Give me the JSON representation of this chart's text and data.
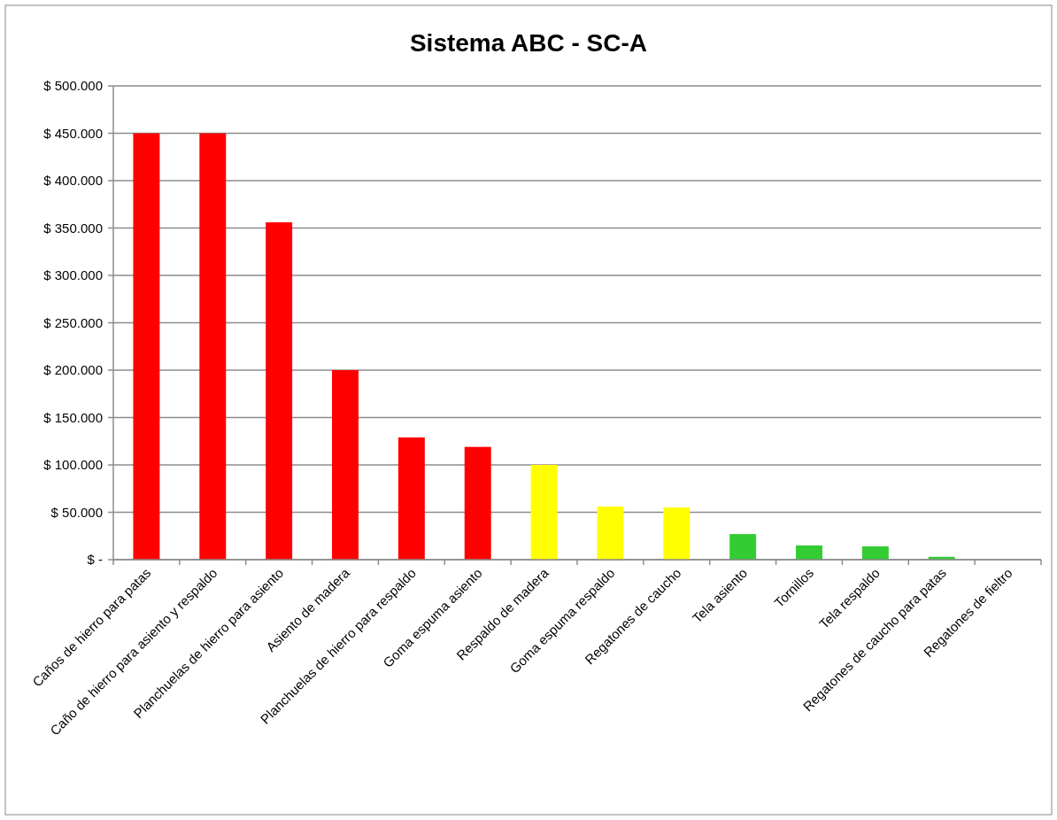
{
  "chart_data": {
    "type": "bar",
    "title": "Sistema ABC - SC-A",
    "categories": [
      "Caños de hierro para patas",
      "Caño de hierro para asiento y respaldo",
      "Planchuelas de hierro para asiento",
      "Asiento de madera",
      "Planchuelas de hierro para respaldo",
      "Goma espuma asiento",
      "Respaldo de madera",
      "Goma espuma respaldo",
      "Regatones de caucho",
      "Tela asiento",
      "Tornillos",
      "Tela respaldo",
      "Regatones de caucho para patas",
      "Regatones de fieltro"
    ],
    "values": [
      450000,
      450000,
      356000,
      200000,
      129000,
      119000,
      100000,
      56000,
      55000,
      27000,
      15000,
      14000,
      3000,
      0
    ],
    "colors": [
      "#ff0000",
      "#ff0000",
      "#ff0000",
      "#ff0000",
      "#ff0000",
      "#ff0000",
      "#ffff00",
      "#ffff00",
      "#ffff00",
      "#33cc33",
      "#33cc33",
      "#33cc33",
      "#33cc33",
      "#33cc33"
    ],
    "ylim": [
      0,
      500000
    ],
    "yticks": [
      {
        "value": 0,
        "label": "$ -"
      },
      {
        "value": 50000,
        "label": "$ 50.000"
      },
      {
        "value": 100000,
        "label": "$ 100.000"
      },
      {
        "value": 150000,
        "label": "$ 150.000"
      },
      {
        "value": 200000,
        "label": "$ 200.000"
      },
      {
        "value": 250000,
        "label": "$ 250.000"
      },
      {
        "value": 300000,
        "label": "$ 300.000"
      },
      {
        "value": 350000,
        "label": "$ 350.000"
      },
      {
        "value": 400000,
        "label": "$ 400.000"
      },
      {
        "value": 450000,
        "label": "$ 450.000"
      },
      {
        "value": 500000,
        "label": "$ 500.000"
      }
    ],
    "grid": "y"
  }
}
